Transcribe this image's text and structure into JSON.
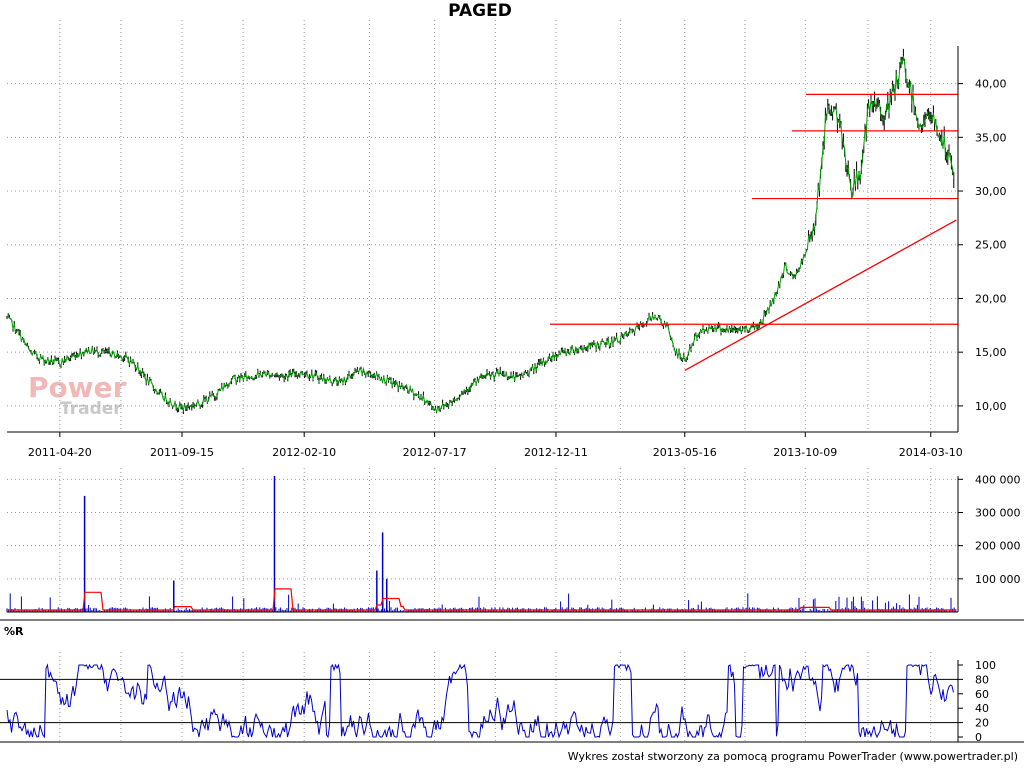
{
  "title": "PAGED",
  "indicator_label": "%R",
  "credit": "Wykres został stworzony za pomocą programu PowerTrader (www.powertrader.pl)",
  "watermark": {
    "line1": "Power",
    "line2": "Trader"
  },
  "colors": {
    "price_up": "#00a000",
    "price_down": "#000000",
    "support": "#ff0000",
    "volume": "#0000cc",
    "volume_avg": "#ff0000",
    "williams": "#0000cc",
    "grid": "#999999",
    "background": "#ffffff"
  },
  "chart_data": [
    {
      "type": "line",
      "title": "PAGED",
      "xlabel": "",
      "ylabel": "",
      "x_ticks": [
        "2011-04-20",
        "2011-09-15",
        "2012-02-10",
        "2012-07-17",
        "2012-12-11",
        "2013-05-16",
        "2013-10-09",
        "2014-03-10"
      ],
      "ylim": [
        8.5,
        43.5
      ],
      "y_ticks": [
        10,
        15,
        20,
        25,
        30,
        35,
        40
      ],
      "y_tick_labels": [
        "10,00",
        "15,00",
        "20,00",
        "25,00",
        "30,00",
        "35,00",
        "40,00"
      ],
      "series": [
        {
          "x": [
            "2011-02-15",
            "2011-03-01",
            "2011-03-15",
            "2011-04-01",
            "2011-04-20",
            "2011-05-10",
            "2011-05-25",
            "2011-06-15",
            "2011-07-05",
            "2011-07-20",
            "2011-08-05",
            "2011-08-20",
            "2011-09-05",
            "2011-09-15",
            "2011-10-05",
            "2011-10-25",
            "2011-11-15",
            "2011-12-05",
            "2011-12-25",
            "2012-01-15",
            "2012-02-10",
            "2012-03-05",
            "2012-03-25",
            "2012-04-15",
            "2012-05-05",
            "2012-05-25",
            "2012-06-15",
            "2012-07-05",
            "2012-07-17",
            "2012-08-05",
            "2012-08-25",
            "2012-09-15",
            "2012-10-05",
            "2012-10-25",
            "2012-11-15",
            "2012-12-11",
            "2013-01-05",
            "2013-01-25",
            "2013-02-15",
            "2013-03-05",
            "2013-03-25",
            "2013-04-10",
            "2013-04-25",
            "2013-05-05",
            "2013-05-16",
            "2013-06-01",
            "2013-06-20",
            "2013-07-10",
            "2013-07-30",
            "2013-08-15",
            "2013-09-01",
            "2013-09-15",
            "2013-09-25",
            "2013-10-09",
            "2013-10-20",
            "2013-10-28",
            "2013-11-05",
            "2013-11-15",
            "2013-11-25",
            "2013-12-05",
            "2013-12-15",
            "2013-12-25",
            "2014-01-05",
            "2014-01-15",
            "2014-01-25",
            "2014-02-05",
            "2014-02-15",
            "2014-02-25",
            "2014-03-10",
            "2014-03-20",
            "2014-03-30",
            "2014-04-08"
          ],
          "y": [
            18.2,
            16.8,
            15.0,
            14.3,
            14.0,
            14.8,
            15.2,
            14.9,
            14.6,
            13.9,
            12.3,
            11.0,
            10.2,
            9.8,
            10.2,
            11.0,
            12.5,
            12.7,
            13.0,
            12.8,
            13.1,
            12.5,
            12.2,
            13.2,
            12.9,
            12.2,
            11.5,
            10.6,
            9.7,
            10.3,
            11.6,
            12.7,
            13.0,
            12.6,
            13.5,
            14.8,
            15.3,
            15.6,
            15.9,
            16.5,
            17.5,
            18.5,
            17.3,
            15.0,
            14.2,
            16.8,
            17.4,
            17.0,
            17.2,
            17.6,
            20.0,
            23.0,
            21.8,
            24.0,
            27.0,
            32.0,
            38.0,
            37.5,
            34.0,
            30.0,
            32.0,
            37.5,
            38.0,
            37.0,
            39.5,
            42.0,
            39.0,
            36.0,
            37.0,
            35.5,
            33.5,
            31.5
          ]
        }
      ],
      "support_levels": [
        17.6,
        29.3,
        35.6,
        39.0
      ],
      "trendline": {
        "from": [
          "2013-05-16",
          13.3
        ],
        "to": [
          "2014-04-10",
          27.3
        ]
      }
    },
    {
      "type": "bar",
      "title": "",
      "ylim": [
        0,
        410000
      ],
      "y_ticks": [
        100000,
        200000,
        300000,
        400000
      ],
      "y_tick_labels": [
        "100 000",
        "200 000",
        "300 000",
        "400 000"
      ],
      "notable_spikes": [
        {
          "x": "2011-05-20",
          "value": 350000
        },
        {
          "x": "2011-09-05",
          "value": 95000
        },
        {
          "x": "2012-01-05",
          "value": 410000
        },
        {
          "x": "2012-05-08",
          "value": 125000
        },
        {
          "x": "2012-05-15",
          "value": 240000
        },
        {
          "x": "2012-05-20",
          "value": 100000
        }
      ],
      "baseline_volume": 12000
    },
    {
      "type": "line",
      "title": "%R",
      "ylim": [
        0,
        100
      ],
      "y_ticks": [
        0,
        20,
        40,
        60,
        80,
        100
      ],
      "reference_lines": [
        20,
        80
      ]
    }
  ]
}
